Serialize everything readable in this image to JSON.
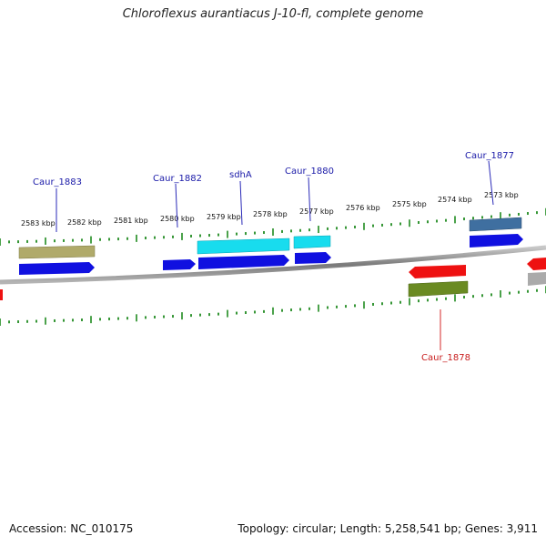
{
  "title": "Chloroflexus aurantiacus J-10-fl, complete genome",
  "footer": {
    "accession": "Accession: NC_010175",
    "topology": "Topology: circular; Length: 5,258,541 bp; Genes: 3,911"
  },
  "scale_labels": [
    "2583 kbp",
    "2582 kbp",
    "2581 kbp",
    "2580 kbp",
    "2579 kbp",
    "2578 kbp",
    "2577 kbp",
    "2576 kbp",
    "2575 kbp",
    "2574 kbp",
    "2573 kbp"
  ],
  "gene_labels": [
    "Caur_1883",
    "Caur_1882",
    "sdhA",
    "Caur_1880",
    "Caur_1877",
    "Caur_1878"
  ],
  "colors": {
    "label": "#1a1aa8",
    "label_lower": "#c81e1e",
    "backbone": "#8a8a8a",
    "ticks": "#1f8a1f",
    "gene_blue": "#1010e0",
    "gene_cyan": "#18dcee",
    "gene_steel": "#3f6fa0",
    "gene_khaki": "#b0aa6a",
    "gene_red": "#ee1111",
    "gene_olive": "#6a8a22",
    "gene_grey": "#aaaaaa"
  }
}
